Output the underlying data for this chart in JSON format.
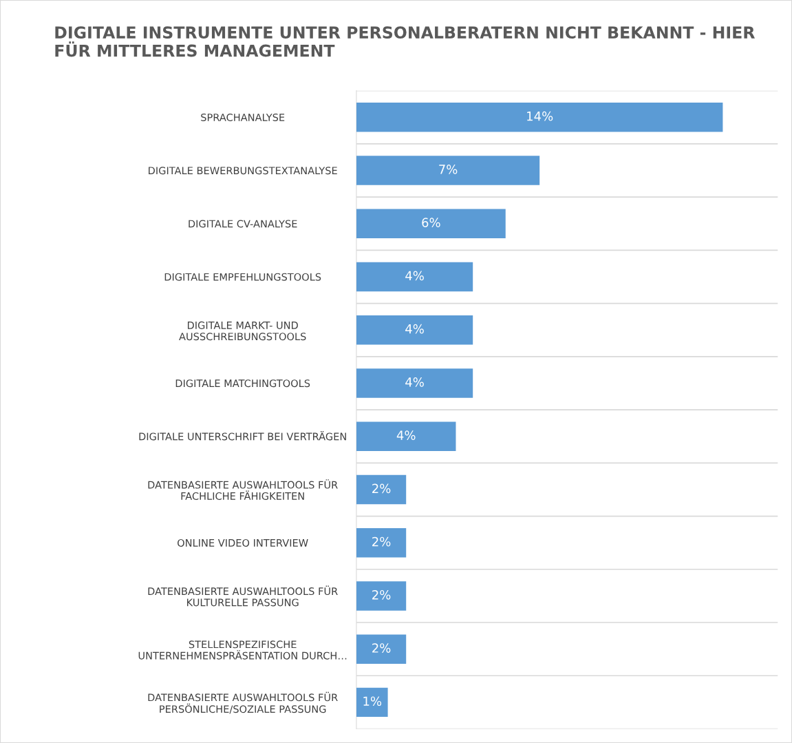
{
  "chart_data": {
    "type": "bar",
    "orientation": "horizontal",
    "title": "DIGITALE INSTRUMENTE UNTER PERSONALBERATERN NICHT BEKANNT - HIER FÜR MITTLERES MANAGEMENT",
    "categories": [
      "SPRACHANALYSE",
      "DIGITALE BEWERBUNGSTEXTANALYSE",
      "DIGITALE CV-ANALYSE",
      "DIGITALE EMPFEHLUNGSTOOLS",
      "DIGITALE MARKT- UND\nAUSSCHREIBUNGSTOOLS",
      "DIGITALE MATCHINGTOOLS",
      "DIGITALE UNTERSCHRIFT BEI VERTRÄGEN",
      "DATENBASIERTE AUSWAHLTOOLS FÜR\nFACHLICHE FÄHIGKEITEN",
      "ONLINE VIDEO INTERVIEW",
      "DATENBASIERTE AUSWAHLTOOLS FÜR\nKULTURELLE PASSUNG",
      "STELLENSPEZIFISCHE\nUNTERNEHMENSPRÄSENTATION DURCH…",
      "DATENBASIERTE AUSWAHLTOOLS FÜR\nPERSÖNLICHE/SOZIALE PASSUNG"
    ],
    "values": [
      14,
      7,
      5.7,
      4.45,
      4.45,
      4.45,
      3.8,
      1.9,
      1.9,
      1.9,
      1.9,
      1.2
    ],
    "value_labels": [
      "14%",
      "7%",
      "6%",
      "4%",
      "4%",
      "4%",
      "4%",
      "2%",
      "2%",
      "2%",
      "2%",
      "1%"
    ],
    "color": "#5b9bd5",
    "xlim": [
      0,
      16.1
    ],
    "tick_labels": "y",
    "grid": "y",
    "legend": false
  }
}
